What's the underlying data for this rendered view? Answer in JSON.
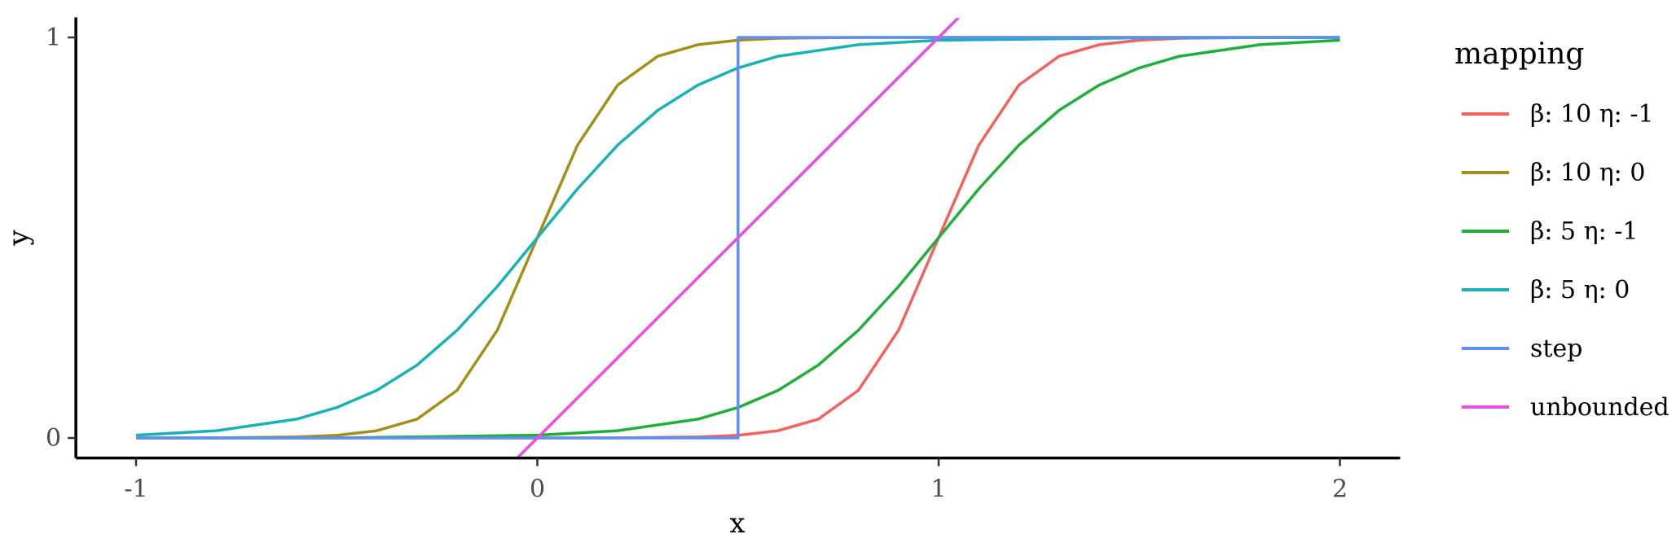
{
  "chart_data": {
    "type": "line",
    "title": "",
    "xlabel": "x",
    "ylabel": "y",
    "xlim": [
      -1.15,
      2.15
    ],
    "ylim": [
      -0.05,
      1.05
    ],
    "x_ticks": [
      -1,
      0,
      1,
      2
    ],
    "x_tick_labels": [
      "-1",
      "0",
      "1",
      "2"
    ],
    "y_ticks": [
      0,
      1
    ],
    "y_tick_labels": [
      "0",
      "1"
    ],
    "grid": false,
    "legend": {
      "title": "mapping",
      "placement": "right"
    },
    "series": [
      {
        "name": "β: 10 η: -1",
        "color": "#F2635F",
        "x": [
          -1,
          -0.5,
          0,
          0.2,
          0.4,
          0.5,
          0.6,
          0.7,
          0.8,
          0.9,
          1.0,
          1.1,
          1.2,
          1.3,
          1.4,
          1.5,
          1.6,
          1.8,
          2.0
        ],
        "y": [
          0.0,
          0.0,
          0.0,
          0.0003,
          0.0025,
          0.0067,
          0.018,
          0.047,
          0.119,
          0.269,
          0.5,
          0.731,
          0.881,
          0.953,
          0.982,
          0.993,
          0.998,
          1.0,
          1.0
        ]
      },
      {
        "name": "β: 10 η: 0",
        "color": "#A3901A",
        "x": [
          -1,
          -0.8,
          -0.6,
          -0.5,
          -0.4,
          -0.3,
          -0.2,
          -0.1,
          0.0,
          0.1,
          0.2,
          0.3,
          0.4,
          0.5,
          0.6,
          0.8,
          1.0,
          1.5,
          2.0
        ],
        "y": [
          0.0,
          0.0003,
          0.0025,
          0.0067,
          0.018,
          0.047,
          0.119,
          0.269,
          0.5,
          0.731,
          0.881,
          0.953,
          0.982,
          0.993,
          0.998,
          1.0,
          1.0,
          1.0,
          1.0
        ]
      },
      {
        "name": "β: 5 η: -1",
        "color": "#1FAF3A",
        "x": [
          -1,
          -0.5,
          0.0,
          0.2,
          0.4,
          0.5,
          0.6,
          0.7,
          0.8,
          0.9,
          1.0,
          1.1,
          1.2,
          1.3,
          1.4,
          1.5,
          1.6,
          1.8,
          2.0
        ],
        "y": [
          0.0,
          0.0,
          0.007,
          0.018,
          0.047,
          0.076,
          0.119,
          0.182,
          0.269,
          0.378,
          0.5,
          0.622,
          0.731,
          0.818,
          0.881,
          0.924,
          0.953,
          0.982,
          0.993
        ]
      },
      {
        "name": "β: 5 η: 0",
        "color": "#1BB2B5",
        "x": [
          -1,
          -0.8,
          -0.6,
          -0.5,
          -0.4,
          -0.3,
          -0.2,
          -0.1,
          0.0,
          0.1,
          0.2,
          0.3,
          0.4,
          0.5,
          0.6,
          0.8,
          1.0,
          1.5,
          2.0
        ],
        "y": [
          0.007,
          0.018,
          0.047,
          0.076,
          0.119,
          0.182,
          0.269,
          0.378,
          0.5,
          0.622,
          0.731,
          0.818,
          0.881,
          0.924,
          0.953,
          0.982,
          0.993,
          0.999,
          1.0
        ]
      },
      {
        "name": "step",
        "color": "#5F8FF0",
        "x": [
          -1,
          0.5,
          0.5,
          2.0
        ],
        "y": [
          0,
          0,
          1,
          1
        ]
      },
      {
        "name": "unbounded",
        "color": "#E84EE0",
        "x": [
          -0.05,
          1.05
        ],
        "y": [
          -0.05,
          1.05
        ]
      }
    ]
  }
}
